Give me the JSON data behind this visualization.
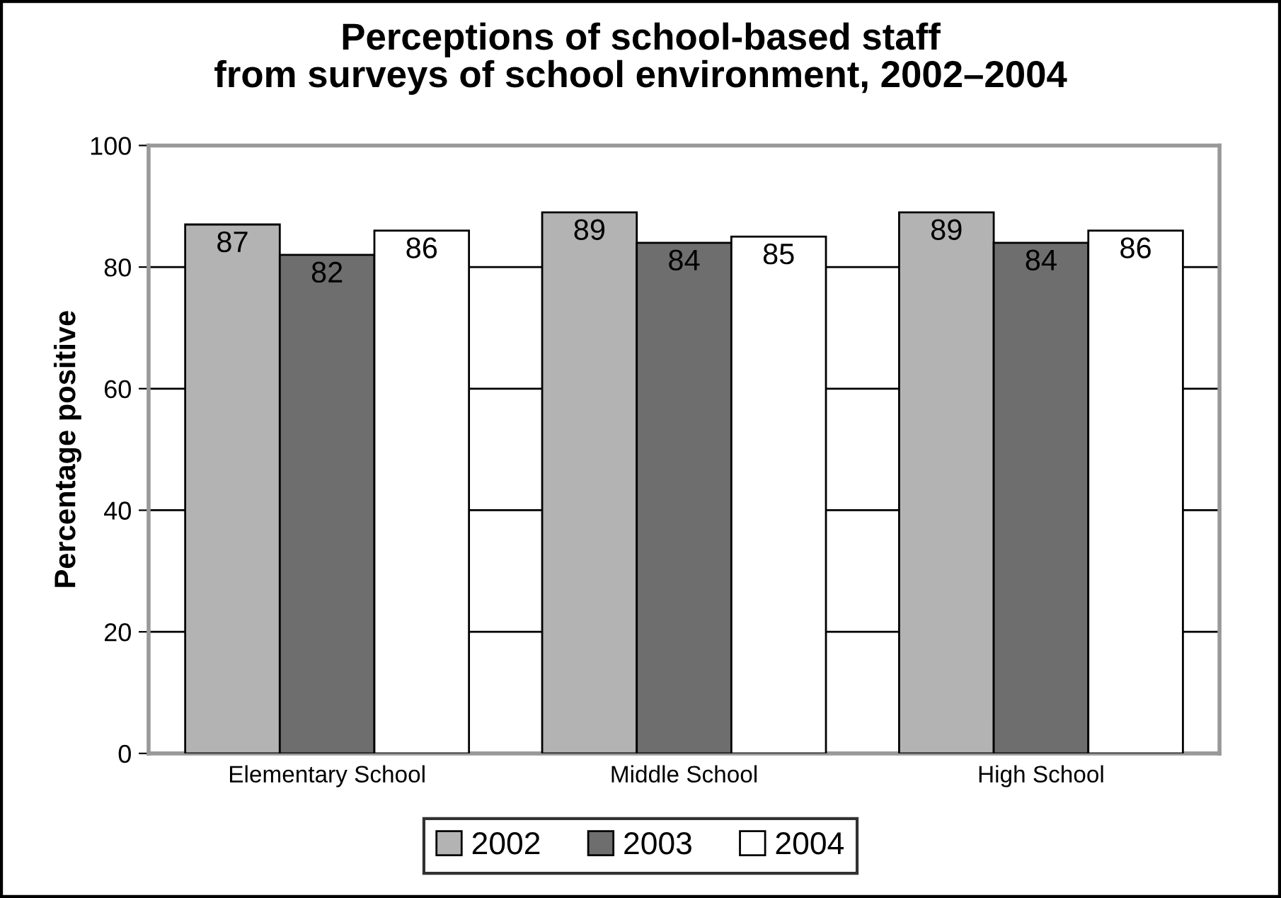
{
  "chart_data": {
    "type": "bar",
    "title": "Perceptions of school-based staff\nfrom surveys of school environment, 2002–2004",
    "ylabel": "Percentage positive",
    "categories": [
      "Elementary School",
      "Middle School",
      "High School"
    ],
    "series": [
      {
        "name": "2002",
        "color": "#b3b3b3",
        "values": [
          87,
          89,
          89
        ]
      },
      {
        "name": "2003",
        "color": "#6e6e6e",
        "values": [
          82,
          84,
          84
        ]
      },
      {
        "name": "2004",
        "color": "#ffffff",
        "values": [
          86,
          85,
          86
        ]
      }
    ],
    "ylim": [
      0,
      100
    ],
    "yticks": [
      0,
      20,
      40,
      60,
      80,
      100
    ],
    "grid": "y",
    "legend": "bottom",
    "data_labels": true
  }
}
